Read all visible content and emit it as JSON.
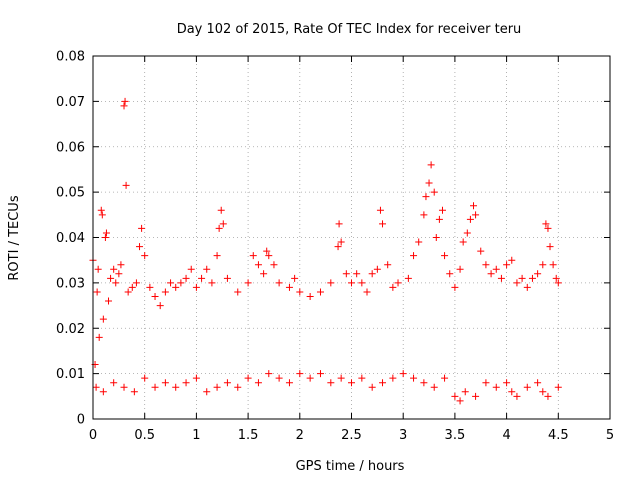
{
  "chart_data": {
    "type": "scatter",
    "title": "Day 102 of 2015, Rate Of TEC Index for receiver teru",
    "xlabel": "GPS time / hours",
    "ylabel": "ROTI / TECUs",
    "xlim": [
      0,
      5
    ],
    "ylim": [
      0,
      0.08
    ],
    "x_ticks": [
      "0",
      "0.5",
      "1",
      "1.5",
      "2",
      "2.5",
      "3",
      "3.5",
      "4",
      "4.5",
      "5"
    ],
    "y_ticks": [
      "0",
      "0.01",
      "0.02",
      "0.03",
      "0.04",
      "0.05",
      "0.06",
      "0.07",
      "0.08"
    ],
    "grid": true,
    "marker": "plus",
    "color": "#ff0000",
    "series": [
      {
        "points": [
          [
            0.0,
            0.035
          ],
          [
            0.02,
            0.012
          ],
          [
            0.04,
            0.028
          ],
          [
            0.05,
            0.033
          ],
          [
            0.06,
            0.018
          ],
          [
            0.08,
            0.046
          ],
          [
            0.09,
            0.045
          ],
          [
            0.1,
            0.022
          ],
          [
            0.12,
            0.04
          ],
          [
            0.13,
            0.041
          ],
          [
            0.15,
            0.026
          ],
          [
            0.17,
            0.031
          ],
          [
            0.2,
            0.033
          ],
          [
            0.22,
            0.03
          ],
          [
            0.25,
            0.032
          ],
          [
            0.27,
            0.034
          ],
          [
            0.3,
            0.069
          ],
          [
            0.31,
            0.07
          ],
          [
            0.32,
            0.0515
          ],
          [
            0.34,
            0.028
          ],
          [
            0.38,
            0.029
          ],
          [
            0.42,
            0.03
          ],
          [
            0.45,
            0.038
          ],
          [
            0.47,
            0.042
          ],
          [
            0.5,
            0.036
          ],
          [
            0.55,
            0.029
          ],
          [
            0.6,
            0.027
          ],
          [
            0.65,
            0.025
          ],
          [
            0.7,
            0.028
          ],
          [
            0.75,
            0.03
          ],
          [
            0.8,
            0.029
          ],
          [
            0.85,
            0.03
          ],
          [
            0.9,
            0.031
          ],
          [
            0.95,
            0.033
          ],
          [
            1.0,
            0.029
          ],
          [
            1.05,
            0.031
          ],
          [
            1.1,
            0.033
          ],
          [
            1.15,
            0.03
          ],
          [
            1.2,
            0.036
          ],
          [
            1.22,
            0.042
          ],
          [
            1.24,
            0.046
          ],
          [
            1.26,
            0.043
          ],
          [
            1.3,
            0.031
          ],
          [
            1.4,
            0.028
          ],
          [
            1.5,
            0.03
          ],
          [
            1.55,
            0.036
          ],
          [
            1.6,
            0.034
          ],
          [
            1.65,
            0.032
          ],
          [
            1.68,
            0.037
          ],
          [
            1.7,
            0.036
          ],
          [
            1.75,
            0.034
          ],
          [
            1.8,
            0.03
          ],
          [
            1.9,
            0.029
          ],
          [
            1.95,
            0.031
          ],
          [
            2.0,
            0.028
          ],
          [
            2.1,
            0.027
          ],
          [
            2.2,
            0.028
          ],
          [
            2.3,
            0.03
          ],
          [
            2.37,
            0.038
          ],
          [
            2.38,
            0.043
          ],
          [
            2.4,
            0.039
          ],
          [
            2.45,
            0.032
          ],
          [
            2.5,
            0.03
          ],
          [
            2.55,
            0.032
          ],
          [
            2.6,
            0.03
          ],
          [
            2.65,
            0.028
          ],
          [
            2.7,
            0.032
          ],
          [
            2.75,
            0.033
          ],
          [
            2.78,
            0.046
          ],
          [
            2.8,
            0.043
          ],
          [
            2.85,
            0.034
          ],
          [
            2.9,
            0.029
          ],
          [
            2.95,
            0.03
          ],
          [
            3.05,
            0.031
          ],
          [
            3.1,
            0.036
          ],
          [
            3.15,
            0.039
          ],
          [
            3.2,
            0.045
          ],
          [
            3.22,
            0.049
          ],
          [
            3.25,
            0.052
          ],
          [
            3.27,
            0.056
          ],
          [
            3.3,
            0.05
          ],
          [
            3.32,
            0.04
          ],
          [
            3.35,
            0.044
          ],
          [
            3.38,
            0.046
          ],
          [
            3.4,
            0.036
          ],
          [
            3.45,
            0.032
          ],
          [
            3.5,
            0.029
          ],
          [
            3.55,
            0.033
          ],
          [
            3.58,
            0.039
          ],
          [
            3.62,
            0.041
          ],
          [
            3.65,
            0.044
          ],
          [
            3.68,
            0.047
          ],
          [
            3.7,
            0.045
          ],
          [
            3.75,
            0.037
          ],
          [
            3.8,
            0.034
          ],
          [
            3.85,
            0.032
          ],
          [
            3.9,
            0.033
          ],
          [
            3.95,
            0.031
          ],
          [
            4.0,
            0.034
          ],
          [
            4.05,
            0.035
          ],
          [
            4.1,
            0.03
          ],
          [
            4.15,
            0.031
          ],
          [
            4.2,
            0.029
          ],
          [
            4.25,
            0.031
          ],
          [
            4.3,
            0.032
          ],
          [
            4.35,
            0.034
          ],
          [
            4.38,
            0.043
          ],
          [
            4.4,
            0.042
          ],
          [
            4.42,
            0.038
          ],
          [
            4.45,
            0.034
          ],
          [
            4.48,
            0.031
          ],
          [
            4.5,
            0.03
          ],
          [
            0.03,
            0.007
          ],
          [
            0.1,
            0.006
          ],
          [
            0.2,
            0.008
          ],
          [
            0.3,
            0.007
          ],
          [
            0.4,
            0.006
          ],
          [
            0.5,
            0.009
          ],
          [
            0.6,
            0.007
          ],
          [
            0.7,
            0.008
          ],
          [
            0.8,
            0.007
          ],
          [
            0.9,
            0.008
          ],
          [
            1.0,
            0.009
          ],
          [
            1.1,
            0.006
          ],
          [
            1.2,
            0.007
          ],
          [
            1.3,
            0.008
          ],
          [
            1.4,
            0.007
          ],
          [
            1.5,
            0.009
          ],
          [
            1.6,
            0.008
          ],
          [
            1.7,
            0.01
          ],
          [
            1.8,
            0.009
          ],
          [
            1.9,
            0.008
          ],
          [
            2.0,
            0.01
          ],
          [
            2.1,
            0.009
          ],
          [
            2.2,
            0.01
          ],
          [
            2.3,
            0.008
          ],
          [
            2.4,
            0.009
          ],
          [
            2.5,
            0.008
          ],
          [
            2.6,
            0.009
          ],
          [
            2.7,
            0.007
          ],
          [
            2.8,
            0.008
          ],
          [
            2.9,
            0.009
          ],
          [
            3.0,
            0.01
          ],
          [
            3.1,
            0.009
          ],
          [
            3.2,
            0.008
          ],
          [
            3.3,
            0.007
          ],
          [
            3.4,
            0.009
          ],
          [
            3.5,
            0.005
          ],
          [
            3.55,
            0.004
          ],
          [
            3.6,
            0.006
          ],
          [
            3.7,
            0.005
          ],
          [
            3.8,
            0.008
          ],
          [
            3.9,
            0.007
          ],
          [
            4.0,
            0.008
          ],
          [
            4.05,
            0.006
          ],
          [
            4.1,
            0.005
          ],
          [
            4.2,
            0.007
          ],
          [
            4.3,
            0.008
          ],
          [
            4.35,
            0.006
          ],
          [
            4.4,
            0.005
          ],
          [
            4.5,
            0.007
          ]
        ]
      }
    ]
  }
}
